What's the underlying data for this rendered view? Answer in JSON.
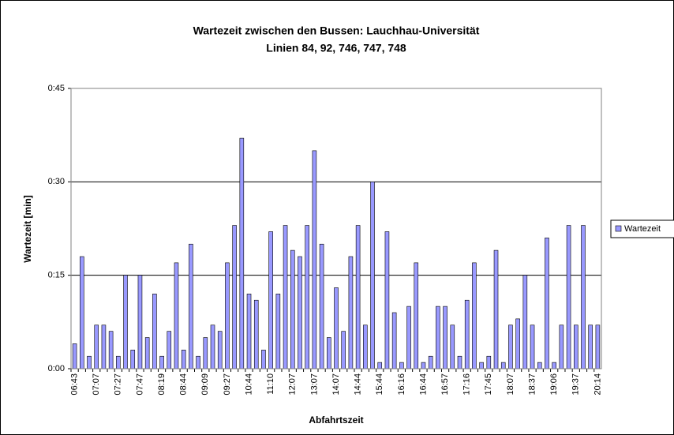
{
  "chart_data": {
    "type": "bar",
    "title": "Wartezeit zwischen den Bussen: Lauchhau-Universität",
    "subtitle": "Linien 84, 92, 746, 747, 748",
    "y_label": "Wartezeit [min]",
    "x_label": "Abfahrtszeit",
    "categories": [
      "06:43",
      null,
      null,
      "07:07",
      null,
      null,
      "07:27",
      null,
      null,
      "07:47",
      null,
      null,
      "08:19",
      null,
      null,
      "08:44",
      null,
      null,
      "09:09",
      null,
      null,
      "09:27",
      null,
      null,
      "10:44",
      null,
      null,
      "11:10",
      null,
      null,
      "12:07",
      null,
      null,
      "13:07",
      null,
      null,
      "14:07",
      null,
      null,
      "14:44",
      null,
      null,
      "15:44",
      null,
      null,
      "16:16",
      null,
      null,
      "16:44",
      null,
      null,
      "16:57",
      null,
      null,
      "17:16",
      null,
      null,
      "17:45",
      null,
      null,
      "18:07",
      null,
      null,
      "18:37",
      null,
      null,
      "19:06",
      null,
      null,
      "19:37",
      null,
      null,
      "20:14"
    ],
    "series": [
      {
        "name": "Wartezeit",
        "color": "#9999ff",
        "values": [
          4,
          18,
          2,
          7,
          7,
          6,
          2,
          15,
          3,
          15,
          5,
          12,
          2,
          6,
          17,
          3,
          20,
          2,
          5,
          7,
          6,
          17,
          23,
          37,
          12,
          11,
          3,
          22,
          12,
          23,
          19,
          18,
          23,
          35,
          20,
          5,
          13,
          6,
          18,
          23,
          7,
          30,
          1,
          22,
          9,
          1,
          10,
          17,
          1,
          2,
          10,
          10,
          7,
          2,
          11,
          17,
          1,
          2,
          19,
          1,
          7,
          8,
          15,
          7,
          1,
          21,
          1,
          7,
          23,
          7,
          23,
          7,
          7
        ]
      }
    ],
    "ylim": [
      0,
      45
    ],
    "yticks": [
      {
        "value": 0,
        "label": "0:00"
      },
      {
        "value": 15,
        "label": "0:15"
      },
      {
        "value": 30,
        "label": "0:30"
      },
      {
        "value": 45,
        "label": "0:45"
      }
    ],
    "grid": true,
    "legend": "right"
  }
}
